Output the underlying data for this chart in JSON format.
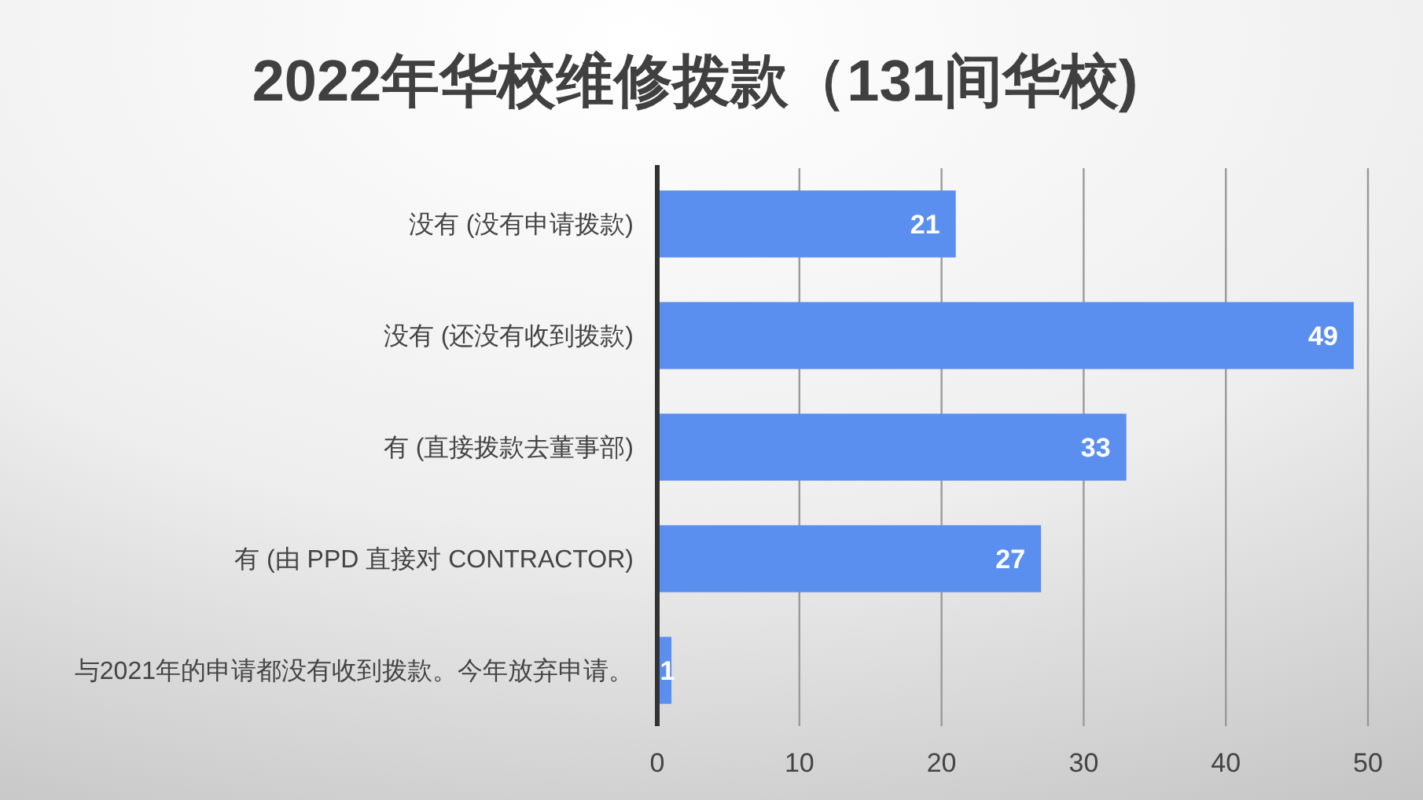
{
  "chart_data": {
    "type": "bar",
    "orientation": "horizontal",
    "title": "2022年华校维修拨款（131间华校)",
    "categories": [
      "没有 (没有申请拨款)",
      "没有 (还没有收到拨款)",
      "有 (直接拨款去董事部)",
      "有 (由 PPD 直接对 CONTRACTOR)",
      "与2021年的申请都没有收到拨款。今年放弃申请。"
    ],
    "values": [
      21,
      49,
      33,
      27,
      1
    ],
    "color": "#5a8fef",
    "xlim": [
      0,
      50
    ],
    "xticks": [
      0,
      10,
      20,
      30,
      40,
      50
    ],
    "grid": "x",
    "data_labels": true
  }
}
